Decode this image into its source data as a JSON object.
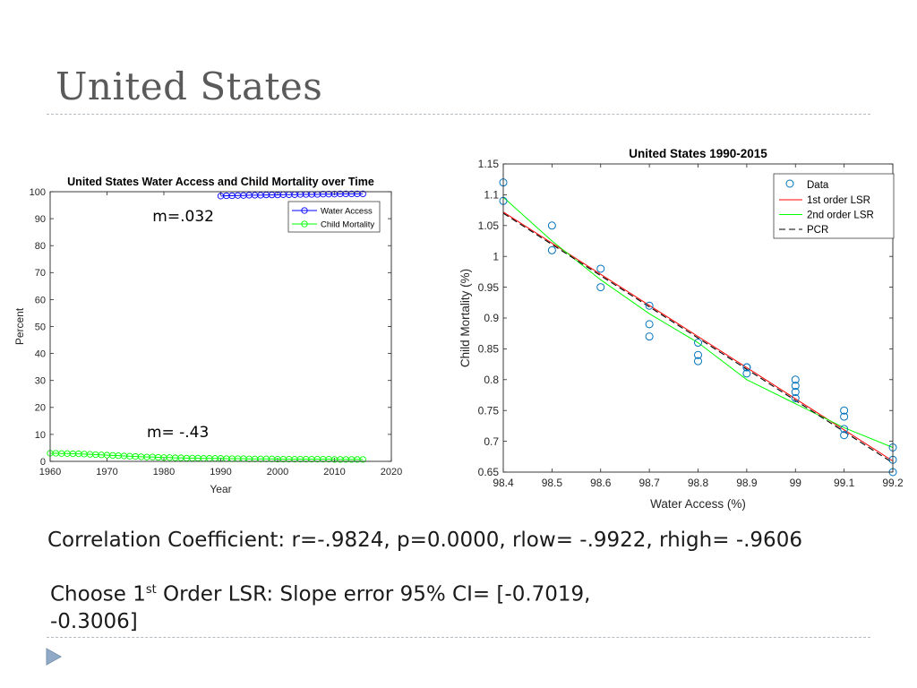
{
  "slide": {
    "title": "United States",
    "correlation_text": "Correlation Coefficient: r=-.9824, p=0.0000, rlow= -.9922, rhigh= -.9606",
    "choose_prefix": "Choose 1",
    "choose_sup": "st",
    "choose_rest": " Order LSR: Slope error 95% CI= [-0.7019,   -0.3006]"
  },
  "chart_data": [
    {
      "type": "line",
      "title": "United States Water Access and Child Mortality over Time",
      "xlabel": "Year",
      "ylabel": "Percent",
      "xlim": [
        1960,
        2020
      ],
      "ylim": [
        0,
        100
      ],
      "xticks": [
        1960,
        1970,
        1980,
        1990,
        2000,
        2010,
        2020
      ],
      "yticks": [
        0,
        10,
        20,
        30,
        40,
        50,
        60,
        70,
        80,
        90,
        100
      ],
      "legend_position": "top-right",
      "annotations": [
        {
          "text": "m=.032",
          "x": 1978,
          "y": 91
        },
        {
          "text": "m= -.43",
          "x": 1977,
          "y": 11
        }
      ],
      "series": [
        {
          "name": "Water Access",
          "color": "#0000ff",
          "marker": "circle",
          "x": [
            1990,
            1991,
            1992,
            1993,
            1994,
            1995,
            1996,
            1997,
            1998,
            1999,
            2000,
            2001,
            2002,
            2003,
            2004,
            2005,
            2006,
            2007,
            2008,
            2009,
            2010,
            2011,
            2012,
            2013,
            2014,
            2015
          ],
          "y": [
            98.4,
            98.5,
            98.5,
            98.6,
            98.6,
            98.7,
            98.7,
            98.7,
            98.8,
            98.8,
            98.8,
            98.9,
            98.9,
            98.9,
            99.0,
            99.0,
            99.0,
            99.0,
            99.1,
            99.1,
            99.1,
            99.2,
            99.2,
            99.2,
            99.2,
            99.2
          ]
        },
        {
          "name": "Child Mortality",
          "color": "#00ff00",
          "marker": "circle",
          "x": [
            1960,
            1961,
            1962,
            1963,
            1964,
            1965,
            1966,
            1967,
            1968,
            1969,
            1970,
            1971,
            1972,
            1973,
            1974,
            1975,
            1976,
            1977,
            1978,
            1979,
            1980,
            1981,
            1982,
            1983,
            1984,
            1985,
            1986,
            1987,
            1988,
            1989,
            1990,
            1991,
            1992,
            1993,
            1994,
            1995,
            1996,
            1997,
            1998,
            1999,
            2000,
            2001,
            2002,
            2003,
            2004,
            2005,
            2006,
            2007,
            2008,
            2009,
            2010,
            2011,
            2012,
            2013,
            2014,
            2015
          ],
          "y": [
            3.0,
            3.0,
            2.9,
            2.9,
            2.8,
            2.8,
            2.7,
            2.6,
            2.5,
            2.4,
            2.3,
            2.2,
            2.1,
            2.0,
            1.9,
            1.8,
            1.7,
            1.6,
            1.6,
            1.5,
            1.4,
            1.4,
            1.3,
            1.3,
            1.2,
            1.2,
            1.2,
            1.1,
            1.1,
            1.1,
            1.1,
            1.0,
            1.0,
            1.0,
            1.0,
            0.9,
            0.9,
            0.9,
            0.9,
            0.9,
            0.8,
            0.8,
            0.8,
            0.8,
            0.8,
            0.8,
            0.8,
            0.8,
            0.8,
            0.8,
            0.7,
            0.7,
            0.7,
            0.7,
            0.7,
            0.7
          ]
        }
      ]
    },
    {
      "type": "scatter",
      "title": "United States 1990-2015",
      "xlabel": "Water Access (%)",
      "ylabel": "Child Mortality (%)",
      "xlim": [
        98.4,
        99.2
      ],
      "ylim": [
        0.65,
        1.15
      ],
      "xticks": [
        98.4,
        98.5,
        98.6,
        98.7,
        98.8,
        98.9,
        99,
        99.1,
        99.2
      ],
      "yticks": [
        0.65,
        0.7,
        0.75,
        0.8,
        0.85,
        0.9,
        0.95,
        1,
        1.05,
        1.1,
        1.15
      ],
      "legend_position": "top-right",
      "points": {
        "name": "Data",
        "color": "#0072bd",
        "x": [
          98.4,
          98.4,
          98.5,
          98.5,
          98.6,
          98.6,
          98.7,
          98.7,
          98.7,
          98.8,
          98.8,
          98.8,
          98.9,
          98.9,
          98.9,
          99.0,
          99.0,
          99.0,
          99.0,
          99.1,
          99.1,
          99.1,
          99.1,
          99.2,
          99.2,
          99.2
        ],
        "y": [
          1.12,
          1.09,
          1.05,
          1.01,
          0.98,
          0.95,
          0.92,
          0.89,
          0.87,
          0.86,
          0.84,
          0.83,
          0.82,
          0.82,
          0.81,
          0.8,
          0.79,
          0.78,
          0.77,
          0.75,
          0.74,
          0.72,
          0.71,
          0.69,
          0.67,
          0.65
        ]
      },
      "lines": [
        {
          "name": "1st order LSR",
          "color": "#ff0000",
          "style": "solid",
          "x": [
            98.4,
            99.2
          ],
          "y": [
            1.072,
            0.668
          ]
        },
        {
          "name": "2nd order LSR",
          "color": "#00ff00",
          "style": "solid",
          "x": [
            98.4,
            98.5,
            98.6,
            98.7,
            98.8,
            98.9,
            99.0,
            99.1,
            99.2
          ],
          "y": [
            1.096,
            1.025,
            0.962,
            0.907,
            0.86,
            0.8,
            0.761,
            0.722,
            0.69
          ]
        },
        {
          "name": "PCR",
          "color": "#000000",
          "style": "dashed",
          "x": [
            98.4,
            99.2
          ],
          "y": [
            1.07,
            0.665
          ]
        }
      ]
    }
  ]
}
